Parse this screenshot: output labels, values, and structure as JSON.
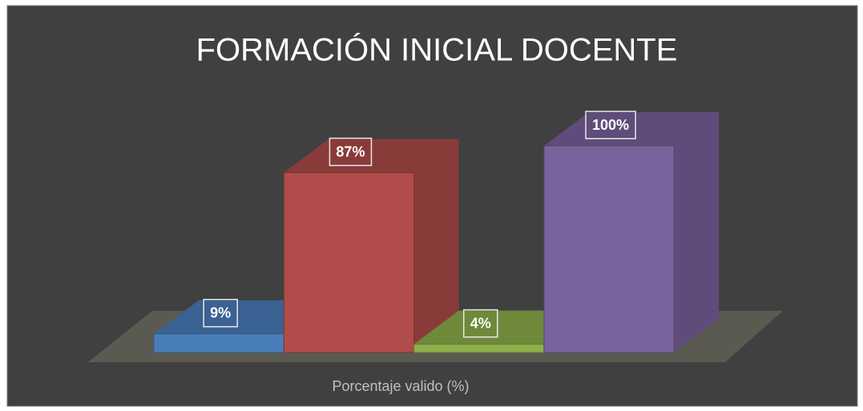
{
  "chart_data": {
    "type": "bar",
    "title": "FORMACIÓN INICIAL  DOCENTE",
    "categories": [
      "Porcentaje valido (%)"
    ],
    "series": [
      {
        "color": "#4a7ebb",
        "values": [
          9
        ],
        "value_labels": [
          "9%"
        ]
      },
      {
        "color": "#b04c49",
        "values": [
          87
        ],
        "value_labels": [
          "87%"
        ]
      },
      {
        "color": "#8db04a",
        "values": [
          4
        ],
        "value_labels": [
          "4%"
        ]
      },
      {
        "color": "#7a629c",
        "values": [
          100
        ],
        "value_labels": [
          "100%"
        ]
      }
    ]
  }
}
